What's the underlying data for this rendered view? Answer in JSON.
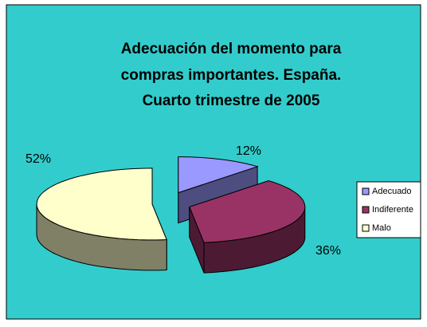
{
  "chart_data": {
    "type": "pie",
    "title": [
      "Adecuación del momento para",
      "compras importantes. España.",
      "Cuarto trimestre de 2005"
    ],
    "categories": [
      "Adecuado",
      "Indiferente",
      "Malo"
    ],
    "values": [
      12,
      36,
      52
    ],
    "value_labels": [
      "12%",
      "36%",
      "52%"
    ],
    "colors": [
      "#9999FF",
      "#993366",
      "#FFFFCC"
    ],
    "legend": "right"
  }
}
